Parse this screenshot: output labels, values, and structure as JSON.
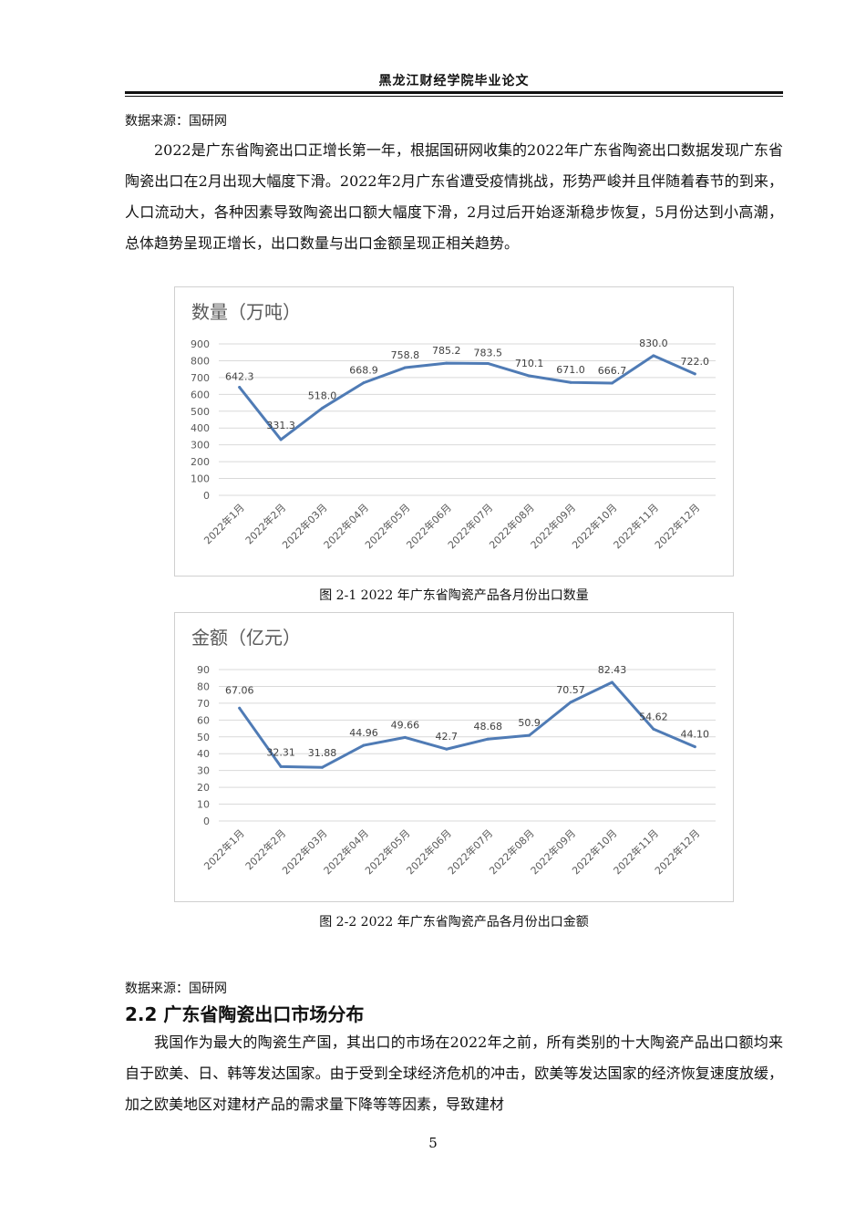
{
  "header": {
    "title": "黑龙江财经学院毕业论文"
  },
  "source_top": "数据来源：国研网",
  "paragraph1": "2022是广东省陶瓷出口正增长第一年，根据国研网收集的2022年广东省陶瓷出口数据发现广东省陶瓷出口在2月出现大幅度下滑。2022年2月广东省遭受疫情挑战，形势严峻并且伴随着春节的到来，人口流动大，各种因素导致陶瓷出口额大幅度下滑，2月过后开始逐渐稳步恢复，5月份达到小高潮，总体趋势呈现正增长，出口数量与出口金额呈现正相关趋势。",
  "caption1": "图 2-1  2022 年广东省陶瓷产品各月份出口数量",
  "caption2": "图 2-2  2022 年广东省陶瓷产品各月份出口金额",
  "source_bottom": "数据来源：国研网",
  "section": {
    "title": "2.2  广东省陶瓷出口市场分布"
  },
  "paragraph2": "我国作为最大的陶瓷生产国，其出口的市场在2022年之前，所有类别的十大陶瓷产品出口额均来自于欧美、日、韩等发达国家。由于受到全球经济危机的冲击，欧美等发达国家的经济恢复速度放缓，加之欧美地区对建材产品的需求量下降等等因素，导致建材",
  "page_number": "5",
  "colors": {
    "line": "#4f7bb5",
    "grid": "#d9d9d9",
    "text": "#595959"
  },
  "chart_data": [
    {
      "type": "line",
      "title": "数量（万吨）",
      "categories": [
        "2022年1月",
        "2022年2月",
        "2022年03月",
        "2022年04月",
        "2022年05月",
        "2022年06月",
        "2022年07月",
        "2022年08月",
        "2022年09月",
        "2022年10月",
        "2022年11月",
        "2022年12月"
      ],
      "values": [
        642.3,
        331.3,
        518.0,
        668.9,
        758.8,
        785.2,
        783.5,
        710.1,
        671.0,
        666.7,
        830.0,
        722.0
      ],
      "labels": [
        "642.3",
        "331.3",
        "518.0",
        "668.9",
        "758.8",
        "785.2",
        "783.5",
        "710.1",
        "671.0",
        "666.7",
        "830.0",
        "722.0"
      ],
      "yticks": [
        "0",
        "100",
        "200",
        "300",
        "400",
        "500",
        "600",
        "700",
        "800",
        "900"
      ],
      "ylim": [
        0,
        900
      ],
      "grid": true
    },
    {
      "type": "line",
      "title": "金额（亿元）",
      "categories": [
        "2022年1月",
        "2022年2月",
        "2022年03月",
        "2022年04月",
        "2022年05月",
        "2022年06月",
        "2022年07月",
        "2022年08月",
        "2022年09月",
        "2022年10月",
        "2022年11月",
        "2022年12月"
      ],
      "values": [
        67.06,
        32.31,
        31.88,
        44.96,
        49.66,
        42.7,
        48.68,
        50.9,
        70.57,
        82.43,
        54.62,
        44.1
      ],
      "labels": [
        "67.06",
        "32.31",
        "31.88",
        "44.96",
        "49.66",
        "42.7",
        "48.68",
        "50.9",
        "70.57",
        "82.43",
        "54.62",
        "44.10"
      ],
      "yticks": [
        "0",
        "10",
        "20",
        "30",
        "40",
        "50",
        "60",
        "70",
        "80",
        "90"
      ],
      "ylim": [
        0,
        90
      ],
      "grid": true
    }
  ]
}
